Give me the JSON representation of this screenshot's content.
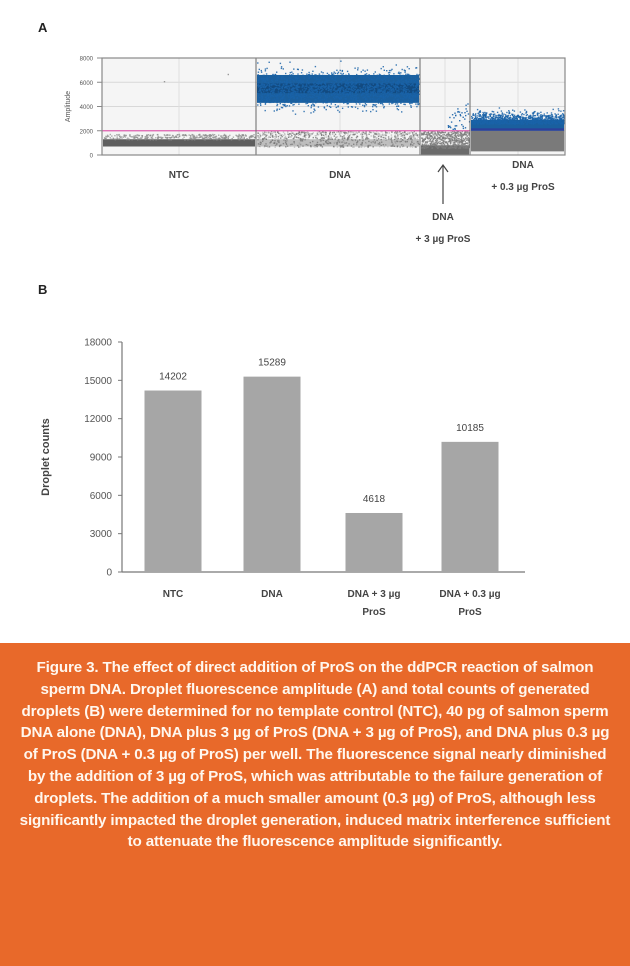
{
  "figure": {
    "panel_a_label": "A",
    "panel_b_label": "B",
    "caption": "Figure 3. The effect of direct addition of ProS on the ddPCR reaction of salmon sperm DNA. Droplet fluorescence amplitude (A) and total counts of generated droplets (B) were determined for no template control (NTC), 40 pg of salmon sperm DNA alone (DNA), DNA plus 3 µg of ProS (DNA + 3 µg of ProS), and DNA plus 0.3 µg of ProS (DNA + 0.3 µg of ProS) per well. The fluorescence signal nearly diminished by the addition of 3 µg of ProS,  which was attributable to the failure generation of droplets. The addition of a much smaller amount (0.3 µg) of ProS, although less significantly impacted the droplet generation, induced matrix interference sufficient to attenuate the fluorescence amplitude significantly.",
    "caption_bg": "#e8692a"
  },
  "chart_data": [
    {
      "type": "scatter",
      "title": "A",
      "xlabel": "",
      "ylabel": "Amplitude",
      "ylim": [
        0,
        8000
      ],
      "yticks": [
        "0",
        "2000",
        "4000",
        "6000",
        "8000"
      ],
      "grid": true,
      "threshold": 2000,
      "threshold_color": "#e060b0",
      "positive_color": "#1a63a8",
      "negative_color": "#707070",
      "groups": [
        {
          "label": "NTC",
          "positive_band": null,
          "negative_band": [
            700,
            1400
          ],
          "outliers": [
            6100,
            6700
          ]
        },
        {
          "label": "DNA",
          "positive_band": [
            2000,
            7800
          ],
          "positive_dense_center": 5500,
          "negative_band": [
            700,
            2000
          ]
        },
        {
          "label": "DNA + 3 µg ProS",
          "positive_band": [
            2000,
            4500
          ],
          "positive_sparse": true,
          "negative_band": [
            0,
            2000
          ]
        },
        {
          "label": "DNA + 0.3 µg ProS",
          "positive_band": [
            2000,
            5500
          ],
          "positive_dense_center": 2600,
          "negative_band": [
            300,
            2000
          ]
        }
      ],
      "annotations": [
        {
          "text": "NTC"
        },
        {
          "text": "DNA"
        },
        {
          "text": "DNA\n+ 3 µg ProS",
          "arrow": "up"
        },
        {
          "text": "DNA\n+ 0.3 µg ProS"
        }
      ]
    },
    {
      "type": "bar",
      "title": "B",
      "xlabel": "",
      "ylabel": "Droplet counts",
      "ylim": [
        0,
        18000
      ],
      "yticks": [
        "0",
        "3000",
        "6000",
        "9000",
        "12000",
        "15000",
        "18000"
      ],
      "grid": false,
      "categories": [
        "NTC",
        "DNA",
        "DNA + 3 µg ProS",
        "DNA + 0.3 µg ProS"
      ],
      "category_lines": [
        [
          "NTC"
        ],
        [
          "DNA"
        ],
        [
          "DNA + 3 µg",
          "ProS"
        ],
        [
          "DNA + 0.3 µg",
          "ProS"
        ]
      ],
      "values": [
        14202,
        15289,
        4618,
        10185
      ],
      "data_labels": [
        "14202",
        "15289",
        "4618",
        "10185"
      ],
      "bar_color": "#a6a6a6"
    }
  ]
}
